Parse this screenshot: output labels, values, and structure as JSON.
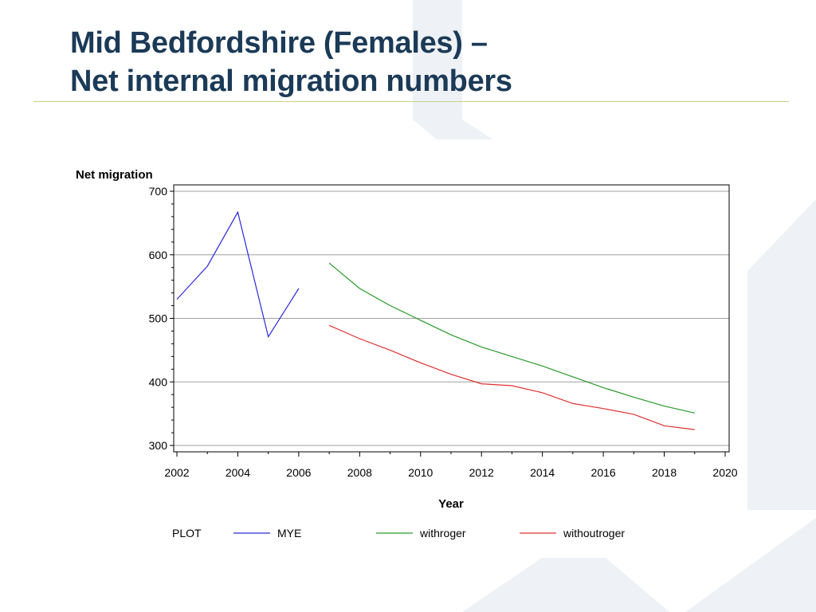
{
  "slide": {
    "title_line1": "Mid Bedfordshire (Females) –",
    "title_line2": "Net internal migration numbers"
  },
  "colors": {
    "title": "#1b3a57",
    "rule": "#c9d08a",
    "decor": "#eef1f5"
  },
  "chart_data": {
    "type": "line",
    "xlabel": "Year",
    "ylabel": "Net migration",
    "xlim": [
      2002,
      2020
    ],
    "ylim": [
      300,
      700
    ],
    "xticks": [
      2002,
      2004,
      2006,
      2008,
      2010,
      2012,
      2014,
      2016,
      2018,
      2020
    ],
    "yticks": [
      300,
      400,
      500,
      600,
      700
    ],
    "grid": "horizontal",
    "legend_placement": "bottom",
    "legend_title": "PLOT",
    "series": [
      {
        "name": "MYE",
        "color": "#2b2bd9",
        "x": [
          2002,
          2003,
          2004,
          2005,
          2006
        ],
        "y": [
          530,
          582,
          667,
          471,
          547
        ]
      },
      {
        "name": "withroger",
        "color": "#2a9a2a",
        "x": [
          2007,
          2008,
          2009,
          2010,
          2011,
          2012,
          2013,
          2014,
          2015,
          2016,
          2017,
          2018,
          2019
        ],
        "y": [
          587,
          547,
          520,
          497,
          474,
          455,
          440,
          425,
          408,
          391,
          376,
          362,
          351
        ]
      },
      {
        "name": "withoutroger",
        "color": "#e03030",
        "x": [
          2007,
          2008,
          2009,
          2010,
          2011,
          2012,
          2013,
          2014,
          2015,
          2016,
          2017,
          2018,
          2019
        ],
        "y": [
          489,
          468,
          450,
          430,
          412,
          397,
          394,
          383,
          366,
          358,
          349,
          331,
          325
        ]
      }
    ]
  }
}
